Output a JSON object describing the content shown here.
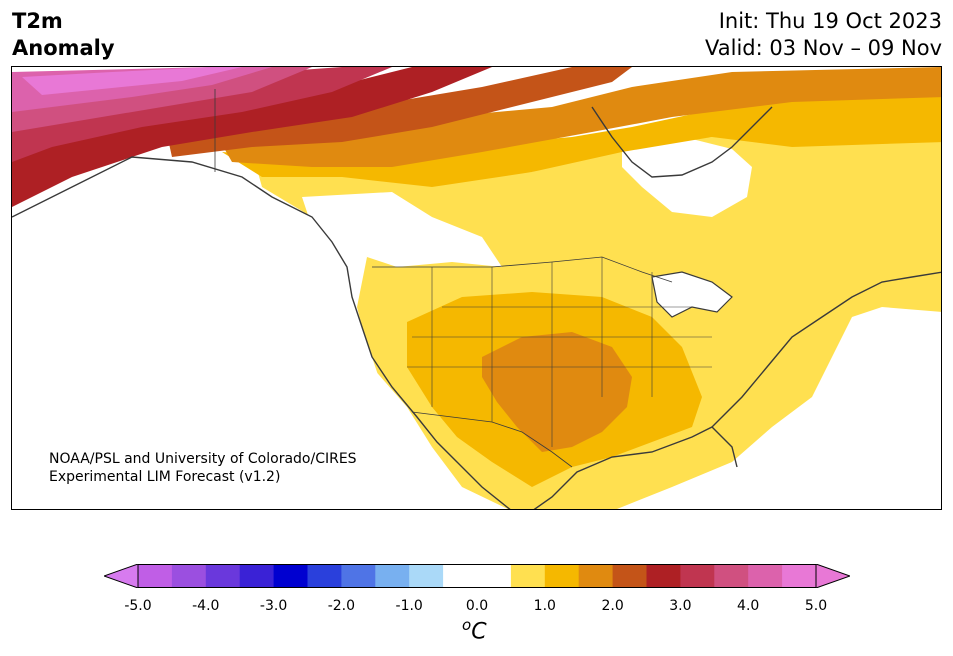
{
  "header": {
    "variable_line1": "T2m",
    "variable_line2": "Anomaly",
    "init": "Init: Thu 19 Oct 2023",
    "valid": "Valid: 03 Nov – 09 Nov"
  },
  "credit": {
    "line1": "NOAA/PSL and University of Colorado/CIRES",
    "line2": "Experimental LIM Forecast (v1.2)"
  },
  "colorbar": {
    "unit_base": "C",
    "unit_sup": "o",
    "ticks": [
      "-5.0",
      "-4.0",
      "-3.0",
      "-2.0",
      "-1.0",
      "0.0",
      "1.0",
      "2.0",
      "3.0",
      "4.0",
      "5.0"
    ],
    "colors": [
      "#c05ee6",
      "#9b4fe0",
      "#6a38dc",
      "#3a22d6",
      "#0000d0",
      "#2a40dc",
      "#4f74e6",
      "#78b0f0",
      "#aad9f8",
      "#ffffff",
      "#ffffff",
      "#ffe050",
      "#f5b800",
      "#e08a10",
      "#c45418",
      "#ae2024",
      "#c03550",
      "#d05080",
      "#dc62ac",
      "#e878d6"
    ],
    "extend_low_color": "#d77bef",
    "extend_high_color": "#e878d6"
  },
  "map_colors": {
    "level1": "#ffe050",
    "level2": "#f5b800",
    "level3": "#e08a10",
    "level4": "#c45418",
    "level5": "#ae2024",
    "level6": "#c03550",
    "level7": "#d05080",
    "level8": "#dc62ac",
    "level9": "#e878d6",
    "coast": "#3a3a3a"
  }
}
